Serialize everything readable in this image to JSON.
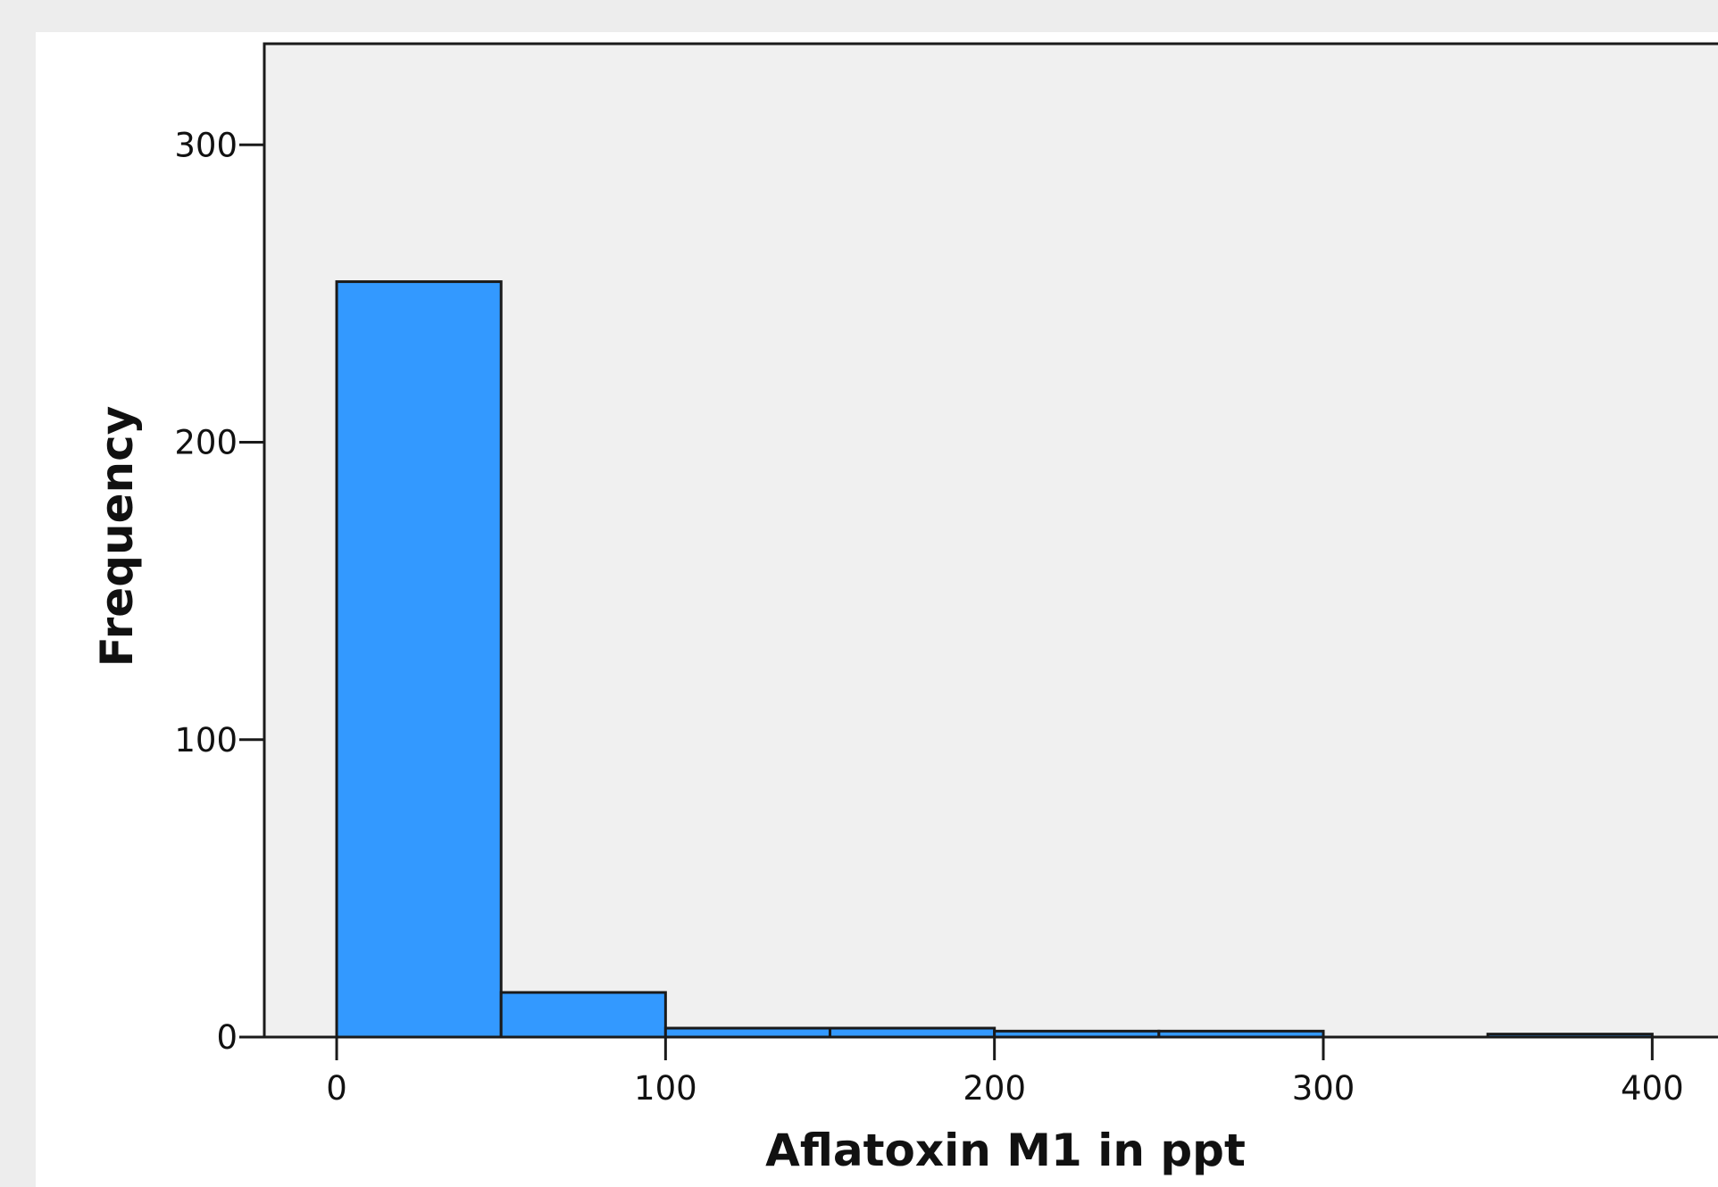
{
  "chart_data": {
    "type": "bar",
    "subtype": "histogram",
    "xlabel": "Aflatoxin M1 in ppt",
    "ylabel": "Frequency",
    "xlim": [
      -22,
      420
    ],
    "ylim": [
      0,
      334
    ],
    "xticks": [
      0,
      100,
      200,
      300,
      400
    ],
    "yticks": [
      0,
      100,
      200,
      300
    ],
    "bin_width": 50,
    "bins": [
      {
        "start": 0,
        "end": 50,
        "count": 254
      },
      {
        "start": 50,
        "end": 100,
        "count": 15
      },
      {
        "start": 100,
        "end": 150,
        "count": 3
      },
      {
        "start": 150,
        "end": 200,
        "count": 3
      },
      {
        "start": 200,
        "end": 250,
        "count": 2
      },
      {
        "start": 250,
        "end": 300,
        "count": 2
      },
      {
        "start": 300,
        "end": 350,
        "count": 0
      },
      {
        "start": 350,
        "end": 400,
        "count": 1
      }
    ],
    "grid": false,
    "legend": "none",
    "colors": {
      "bar_fill": "#3399ff",
      "bar_stroke": "#1a1a1a",
      "plot_background": "#f0f0f0"
    }
  }
}
